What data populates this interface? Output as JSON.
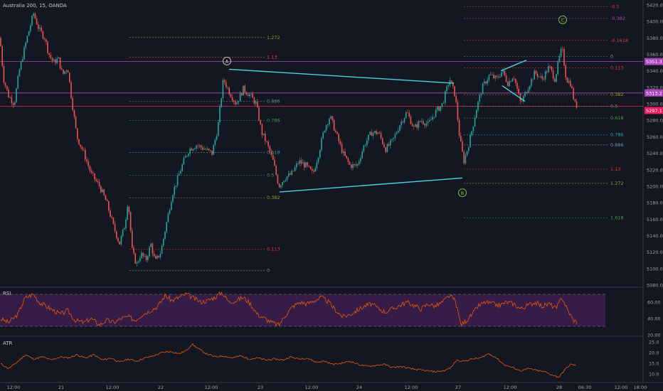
{
  "header": {
    "title": "Australia 200, 15, OANDA"
  },
  "colors": {
    "background": "#131722",
    "up": "#26a69a",
    "down": "#ef5350",
    "trendline": "#4dd0e1",
    "magenta": "#ab47bc",
    "rsi_line": "#e8590c",
    "rsi_band": "#3b1d4a",
    "atr_line": "#e8590c"
  },
  "price_axis": {
    "ticks": [
      "5420.0",
      "5400.0",
      "5380.0",
      "5360.0",
      "5340.0",
      "5320.0",
      "5300.0",
      "5280.0",
      "5260.0",
      "5240.0",
      "5220.0",
      "5200.0",
      "5180.0",
      "5160.0",
      "5140.0",
      "5120.0",
      "5100.0",
      "5080.0"
    ],
    "badges": [
      {
        "text": "5351.3",
        "value": 5351.3,
        "color": "#ab47bc"
      },
      {
        "text": "5313.2",
        "value": 5313.2,
        "color": "#ab47bc"
      },
      {
        "text": "5297.1",
        "value": 5297.1,
        "color": "#e91e63"
      }
    ]
  },
  "time_axis": {
    "labels": [
      "12:00",
      "21",
      "12:00",
      "22",
      "12:00",
      "23",
      "12:00",
      "24",
      "12:00",
      "27",
      "12:00",
      "28",
      "06:30",
      "12:00",
      "18:00"
    ]
  },
  "waves": [
    {
      "label": "A",
      "color": "#cfd8c8"
    },
    {
      "label": "B",
      "color": "#8bc34a"
    },
    {
      "label": "C",
      "color": "#8bc34a"
    }
  ],
  "fib_left": {
    "levels": [
      {
        "label": "1.272",
        "value": 5380.5,
        "color": "#9e9d24"
      },
      {
        "label": "1.13",
        "value": 5356.7,
        "color": "#e53935"
      },
      {
        "label": "0.886",
        "value": 5303.0,
        "color": "#78909c"
      },
      {
        "label": "0.786",
        "value": 5279.7,
        "color": "#43a047"
      },
      {
        "label": "0.618",
        "value": 5240.8,
        "color": "#26a69a"
      },
      {
        "label": "0.5",
        "value": 5213.4,
        "color": "#43a047"
      },
      {
        "label": "0.382",
        "value": 5186.0,
        "color": "#9e9d24"
      },
      {
        "label": "0.113",
        "value": 5123.6,
        "color": "#e53935"
      },
      {
        "label": "0",
        "value": 5097.5,
        "color": "#78909c"
      }
    ]
  },
  "fib_right": {
    "levels": [
      {
        "label": "-0.5",
        "value": 5418.0,
        "color": "#e53935"
      },
      {
        "label": "-0.382",
        "value": 5403.7,
        "color": "#ab47bc"
      },
      {
        "label": "-0.1618",
        "value": 5377.0,
        "color": "#e53935"
      },
      {
        "label": "0",
        "value": 5357.5,
        "color": "#78909c"
      },
      {
        "label": "0.113",
        "value": 5343.8,
        "color": "#e53935"
      },
      {
        "label": "0.382",
        "value": 5311.2,
        "color": "#9e9d24"
      },
      {
        "label": "0.5",
        "value": 5296.9,
        "color": "#43a047"
      },
      {
        "label": "0.618",
        "value": 5282.7,
        "color": "#43a047"
      },
      {
        "label": "0.786",
        "value": 5262.3,
        "color": "#26a69a"
      },
      {
        "label": "0.886",
        "value": 5250.2,
        "color": "#78909c"
      },
      {
        "label": "1.13",
        "value": 5220.7,
        "color": "#e53935"
      },
      {
        "label": "1.272",
        "value": 5203.5,
        "color": "#9e9d24"
      },
      {
        "label": "1.618",
        "value": 5161.6,
        "color": "#43a047"
      }
    ]
  },
  "horizontal_lines": [
    5351.3,
    5313.2,
    5297.1
  ],
  "rsi": {
    "title": "RSI",
    "ticks": [
      "60.00",
      "40.00",
      "20.00"
    ],
    "band": [
      30,
      70
    ]
  },
  "atr": {
    "title": "ATR",
    "ticks": [
      "25.0",
      "20.0",
      "15.0",
      "10.0"
    ]
  },
  "chart_data": {
    "type": "candlestick",
    "title": "Australia 200, 15, OANDA",
    "ylim": [
      5080,
      5430
    ],
    "x_categories": [
      "12:00",
      "21",
      "12:00",
      "22",
      "12:00",
      "23",
      "12:00",
      "24",
      "12:00",
      "27",
      "12:00",
      "28",
      "06:30",
      "12:00",
      "18:00"
    ],
    "price_path": [
      [
        0,
        5380
      ],
      [
        5,
        5330
      ],
      [
        12,
        5310
      ],
      [
        20,
        5300
      ],
      [
        27,
        5340
      ],
      [
        38,
        5380
      ],
      [
        47,
        5410
      ],
      [
        55,
        5390
      ],
      [
        63,
        5380
      ],
      [
        68,
        5362
      ],
      [
        75,
        5350
      ],
      [
        82,
        5355
      ],
      [
        88,
        5335
      ],
      [
        95,
        5345
      ],
      [
        100,
        5310
      ],
      [
        108,
        5260
      ],
      [
        118,
        5240
      ],
      [
        128,
        5215
      ],
      [
        140,
        5200
      ],
      [
        150,
        5180
      ],
      [
        160,
        5150
      ],
      [
        168,
        5130
      ],
      [
        176,
        5155
      ],
      [
        180,
        5185
      ],
      [
        186,
        5120
      ],
      [
        192,
        5105
      ],
      [
        198,
        5118
      ],
      [
        205,
        5110
      ],
      [
        212,
        5130
      ],
      [
        218,
        5108
      ],
      [
        226,
        5120
      ],
      [
        234,
        5155
      ],
      [
        242,
        5190
      ],
      [
        250,
        5210
      ],
      [
        258,
        5230
      ],
      [
        266,
        5245
      ],
      [
        276,
        5250
      ],
      [
        288,
        5245
      ],
      [
        298,
        5240
      ],
      [
        306,
        5270
      ],
      [
        314,
        5330
      ],
      [
        322,
        5315
      ],
      [
        332,
        5300
      ],
      [
        342,
        5318
      ],
      [
        352,
        5310
      ],
      [
        360,
        5300
      ],
      [
        368,
        5265
      ],
      [
        376,
        5250
      ],
      [
        384,
        5230
      ],
      [
        392,
        5200
      ],
      [
        400,
        5210
      ],
      [
        410,
        5215
      ],
      [
        420,
        5230
      ],
      [
        430,
        5225
      ],
      [
        440,
        5215
      ],
      [
        448,
        5240
      ],
      [
        456,
        5270
      ],
      [
        464,
        5285
      ],
      [
        472,
        5265
      ],
      [
        482,
        5240
      ],
      [
        492,
        5225
      ],
      [
        502,
        5225
      ],
      [
        512,
        5250
      ],
      [
        522,
        5265
      ],
      [
        532,
        5265
      ],
      [
        542,
        5245
      ],
      [
        552,
        5255
      ],
      [
        562,
        5275
      ],
      [
        572,
        5290
      ],
      [
        582,
        5270
      ],
      [
        592,
        5280
      ],
      [
        602,
        5275
      ],
      [
        612,
        5290
      ],
      [
        622,
        5300
      ],
      [
        632,
        5330
      ],
      [
        640,
        5310
      ],
      [
        646,
        5260
      ],
      [
        652,
        5230
      ],
      [
        658,
        5248
      ],
      [
        664,
        5270
      ],
      [
        670,
        5295
      ],
      [
        678,
        5320
      ],
      [
        688,
        5335
      ],
      [
        698,
        5330
      ],
      [
        706,
        5340
      ],
      [
        714,
        5325
      ],
      [
        722,
        5335
      ],
      [
        732,
        5300
      ],
      [
        742,
        5320
      ],
      [
        752,
        5338
      ],
      [
        762,
        5330
      ],
      [
        772,
        5345
      ],
      [
        780,
        5330
      ],
      [
        786,
        5355
      ],
      [
        790,
        5368
      ],
      [
        796,
        5330
      ],
      [
        802,
        5325
      ],
      [
        808,
        5300
      ],
      [
        812,
        5297
      ]
    ],
    "rsi_path": [
      [
        0,
        40
      ],
      [
        12,
        35
      ],
      [
        25,
        45
      ],
      [
        35,
        65
      ],
      [
        47,
        70
      ],
      [
        55,
        60
      ],
      [
        65,
        55
      ],
      [
        75,
        50
      ],
      [
        85,
        45
      ],
      [
        95,
        50
      ],
      [
        105,
        38
      ],
      [
        118,
        35
      ],
      [
        128,
        40
      ],
      [
        140,
        32
      ],
      [
        150,
        38
      ],
      [
        160,
        35
      ],
      [
        170,
        40
      ],
      [
        180,
        42
      ],
      [
        190,
        38
      ],
      [
        200,
        45
      ],
      [
        212,
        50
      ],
      [
        222,
        55
      ],
      [
        232,
        68
      ],
      [
        242,
        62
      ],
      [
        252,
        66
      ],
      [
        262,
        70
      ],
      [
        272,
        65
      ],
      [
        282,
        60
      ],
      [
        292,
        62
      ],
      [
        302,
        66
      ],
      [
        312,
        72
      ],
      [
        322,
        60
      ],
      [
        332,
        62
      ],
      [
        342,
        66
      ],
      [
        352,
        58
      ],
      [
        362,
        45
      ],
      [
        372,
        40
      ],
      [
        382,
        35
      ],
      [
        392,
        32
      ],
      [
        402,
        45
      ],
      [
        412,
        55
      ],
      [
        422,
        60
      ],
      [
        432,
        58
      ],
      [
        442,
        62
      ],
      [
        452,
        66
      ],
      [
        462,
        60
      ],
      [
        472,
        50
      ],
      [
        482,
        42
      ],
      [
        492,
        45
      ],
      [
        502,
        50
      ],
      [
        512,
        55
      ],
      [
        522,
        58
      ],
      [
        532,
        52
      ],
      [
        542,
        48
      ],
      [
        552,
        52
      ],
      [
        562,
        56
      ],
      [
        572,
        60
      ],
      [
        582,
        56
      ],
      [
        592,
        52
      ],
      [
        602,
        58
      ],
      [
        612,
        55
      ],
      [
        622,
        60
      ],
      [
        632,
        68
      ],
      [
        640,
        62
      ],
      [
        648,
        32
      ],
      [
        656,
        38
      ],
      [
        664,
        45
      ],
      [
        672,
        55
      ],
      [
        682,
        60
      ],
      [
        692,
        58
      ],
      [
        702,
        56
      ],
      [
        712,
        60
      ],
      [
        722,
        58
      ],
      [
        732,
        52
      ],
      [
        742,
        56
      ],
      [
        752,
        60
      ],
      [
        762,
        55
      ],
      [
        772,
        58
      ],
      [
        782,
        52
      ],
      [
        790,
        66
      ],
      [
        798,
        50
      ],
      [
        806,
        38
      ],
      [
        812,
        35
      ]
    ],
    "atr_path": [
      [
        0,
        15
      ],
      [
        12,
        12.5
      ],
      [
        24,
        15.5
      ],
      [
        36,
        19
      ],
      [
        47,
        17
      ],
      [
        60,
        18
      ],
      [
        72,
        16.5
      ],
      [
        85,
        18
      ],
      [
        96,
        17.5
      ],
      [
        108,
        19
      ],
      [
        120,
        17.5
      ],
      [
        132,
        19
      ],
      [
        144,
        16.5
      ],
      [
        156,
        17.5
      ],
      [
        168,
        15.5
      ],
      [
        180,
        17
      ],
      [
        192,
        16
      ],
      [
        204,
        17.5
      ],
      [
        216,
        18.5
      ],
      [
        228,
        20
      ],
      [
        240,
        20.5
      ],
      [
        252,
        19.5
      ],
      [
        262,
        21
      ],
      [
        270,
        24
      ],
      [
        278,
        22
      ],
      [
        290,
        19.5
      ],
      [
        302,
        18
      ],
      [
        314,
        18.5
      ],
      [
        326,
        17.5
      ],
      [
        338,
        18.5
      ],
      [
        350,
        17
      ],
      [
        362,
        17.5
      ],
      [
        374,
        16.5
      ],
      [
        386,
        17
      ],
      [
        398,
        16.5
      ],
      [
        408,
        18
      ],
      [
        420,
        17
      ],
      [
        432,
        17.5
      ],
      [
        444,
        15.5
      ],
      [
        456,
        16
      ],
      [
        468,
        14.5
      ],
      [
        480,
        15
      ],
      [
        492,
        16
      ],
      [
        504,
        14.5
      ],
      [
        516,
        13.5
      ],
      [
        528,
        14
      ],
      [
        540,
        14.5
      ],
      [
        552,
        13
      ],
      [
        564,
        13.5
      ],
      [
        576,
        12.5
      ],
      [
        588,
        12
      ],
      [
        600,
        11.5
      ],
      [
        612,
        11
      ],
      [
        624,
        11.5
      ],
      [
        634,
        13
      ],
      [
        642,
        16.5
      ],
      [
        652,
        16
      ],
      [
        664,
        17
      ],
      [
        676,
        17.5
      ],
      [
        686,
        19.5
      ],
      [
        696,
        18
      ],
      [
        708,
        14.5
      ],
      [
        720,
        13
      ],
      [
        732,
        11.5
      ],
      [
        744,
        12.5
      ],
      [
        756,
        11.5
      ],
      [
        766,
        11
      ],
      [
        776,
        9.5
      ],
      [
        786,
        8.5
      ],
      [
        794,
        12
      ],
      [
        802,
        14.5
      ],
      [
        810,
        14
      ]
    ]
  }
}
